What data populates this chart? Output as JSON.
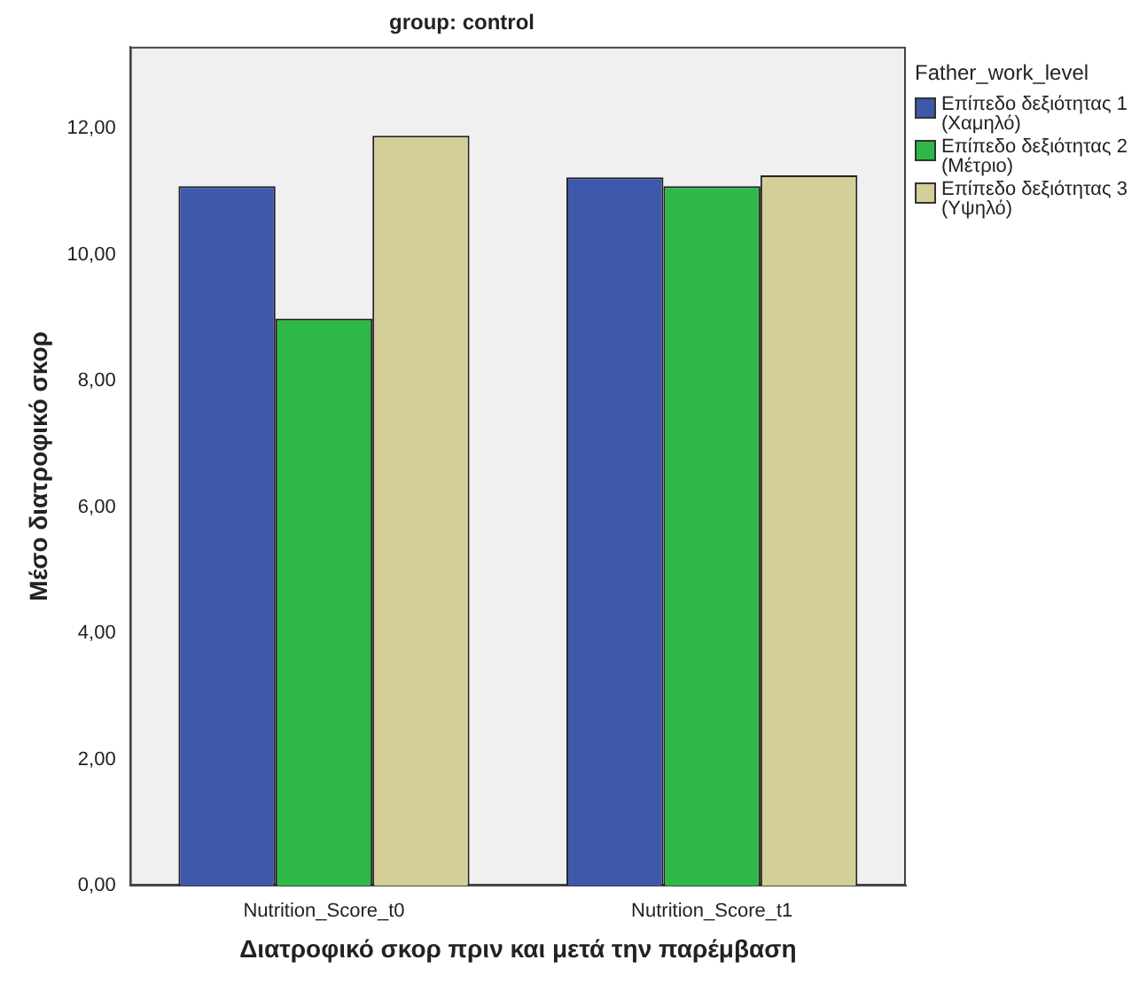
{
  "chart_data": {
    "type": "bar",
    "title": "group: control",
    "xlabel": "Διατροφικό σκορ πριν και μετά την παρέμβαση",
    "ylabel": "Μέσο διατροφικό σκορ",
    "legend_title": "Father_work_level",
    "categories": [
      "Nutrition_Score_t0",
      "Nutrition_Score_t1"
    ],
    "series": [
      {
        "name": "Επίπεδο δεξιότητας 1 (Χαμηλό)",
        "color": "#3e58ac",
        "values": [
          11.09,
          11.23
        ]
      },
      {
        "name": "Επίπεδο δεξιότητας 2 (Μέτριο)",
        "color": "#2eb848",
        "values": [
          8.99,
          11.09
        ]
      },
      {
        "name": "Επίπεδο δεξιότητας 3 (Υψηλό)",
        "color": "#d4cf98",
        "values": [
          11.89,
          11.26
        ]
      }
    ],
    "ylim": [
      0,
      13.3
    ],
    "yticks": [
      {
        "value": 0,
        "label": "0,00"
      },
      {
        "value": 2,
        "label": "2,00"
      },
      {
        "value": 4,
        "label": "4,00"
      },
      {
        "value": 6,
        "label": "6,00"
      },
      {
        "value": 8,
        "label": "8,00"
      },
      {
        "value": 10,
        "label": "10,00"
      },
      {
        "value": 12,
        "label": "12,00"
      }
    ],
    "grid": false,
    "legend": "top right"
  }
}
